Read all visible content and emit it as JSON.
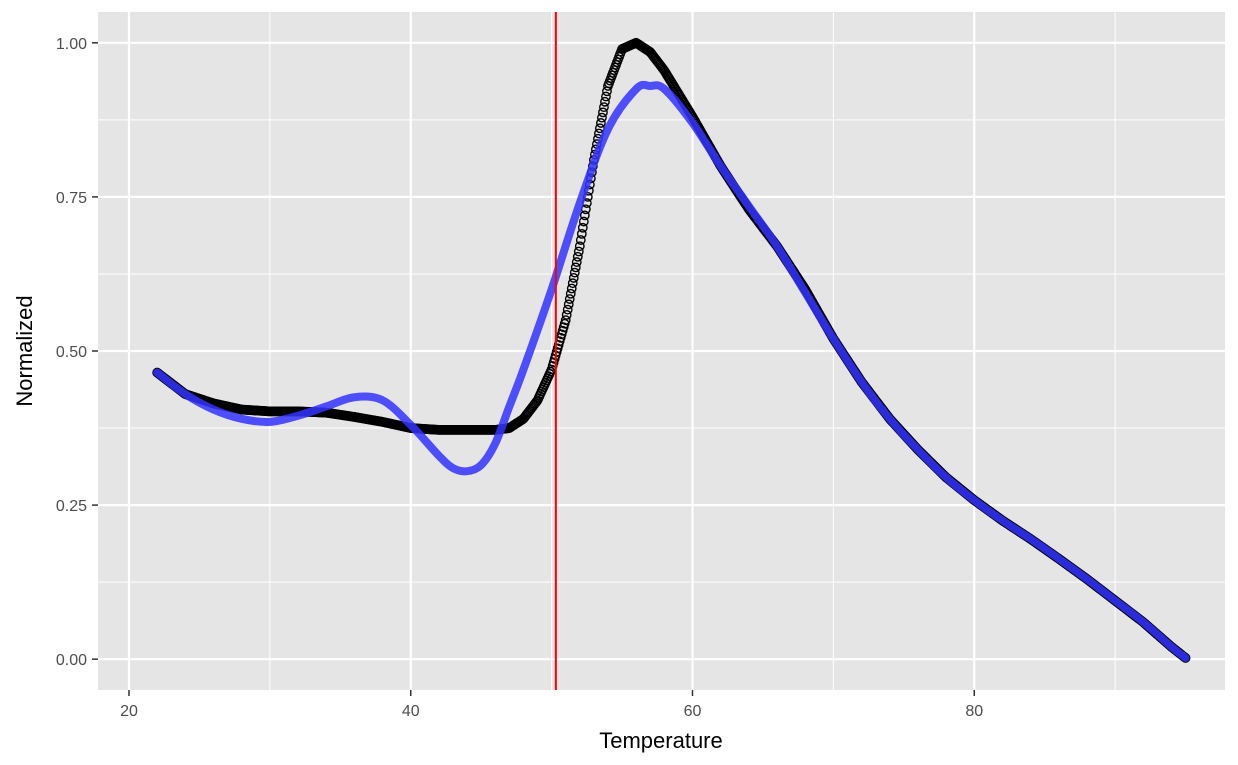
{
  "chart_data": {
    "type": "scatter",
    "title": "",
    "xlabel": "Temperature",
    "ylabel": "Normalized",
    "xlim": [
      17.8,
      97.8
    ],
    "ylim": [
      -0.05,
      1.05
    ],
    "x_ticks": [
      20,
      40,
      60,
      80
    ],
    "y_ticks": [
      0,
      0.25,
      0.5,
      0.75,
      1
    ],
    "x_tick_labels": [
      "20",
      "40",
      "60",
      "80"
    ],
    "y_tick_labels": [
      "0.00",
      "0.25",
      "0.50",
      "0.75",
      "1.00"
    ],
    "grid": true,
    "panel_background": "#e5e5e5",
    "grid_color": "#ffffff",
    "vline": {
      "x": 50.3,
      "color": "#ff0000"
    },
    "series": [
      {
        "kind": "points",
        "color": "#000000",
        "x": [
          22,
          24,
          26,
          28,
          30,
          32,
          34,
          36,
          38,
          40,
          42,
          44,
          46,
          47,
          48,
          49,
          50,
          51,
          52,
          53,
          54,
          55,
          56,
          57,
          58,
          60,
          62,
          64,
          66,
          68,
          70,
          72,
          74,
          76,
          78,
          80,
          82,
          84,
          86,
          88,
          90,
          92,
          94,
          95
        ],
        "y": [
          0.465,
          0.43,
          0.415,
          0.405,
          0.402,
          0.402,
          0.4,
          0.393,
          0.385,
          0.375,
          0.372,
          0.372,
          0.372,
          0.375,
          0.39,
          0.42,
          0.47,
          0.55,
          0.67,
          0.81,
          0.93,
          0.99,
          1.0,
          0.985,
          0.955,
          0.88,
          0.8,
          0.73,
          0.67,
          0.6,
          0.52,
          0.45,
          0.39,
          0.34,
          0.295,
          0.258,
          0.225,
          0.195,
          0.163,
          0.13,
          0.095,
          0.06,
          0.02,
          0.002
        ]
      },
      {
        "kind": "line",
        "color": "#3333ff",
        "x": [
          22,
          24,
          26,
          28,
          30,
          32,
          34,
          36,
          38,
          40,
          42,
          43,
          44,
          45,
          46,
          47,
          48,
          50,
          52,
          54,
          56,
          57,
          58,
          60,
          62,
          64,
          66,
          68,
          70,
          72,
          74,
          76,
          78,
          80,
          82,
          84,
          86,
          88,
          90,
          92,
          94,
          95
        ],
        "y": [
          0.465,
          0.43,
          0.405,
          0.39,
          0.385,
          0.395,
          0.41,
          0.425,
          0.42,
          0.38,
          0.33,
          0.31,
          0.305,
          0.315,
          0.35,
          0.41,
          0.47,
          0.6,
          0.74,
          0.86,
          0.925,
          0.93,
          0.925,
          0.87,
          0.8,
          0.735,
          0.67,
          0.595,
          0.52,
          0.45,
          0.39,
          0.34,
          0.295,
          0.258,
          0.225,
          0.195,
          0.163,
          0.13,
          0.095,
          0.06,
          0.02,
          0.002
        ]
      }
    ]
  }
}
